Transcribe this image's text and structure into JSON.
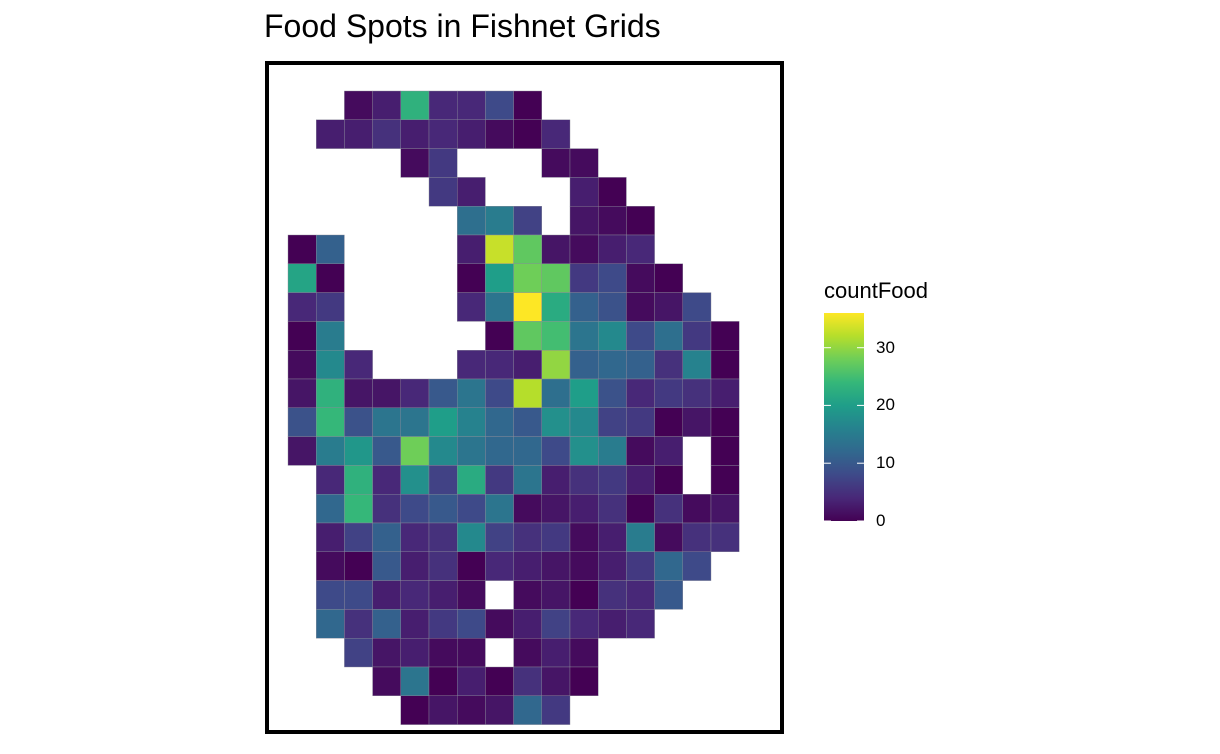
{
  "chart_data": {
    "type": "heatmap",
    "title": "Food Spots in Fishnet Grids",
    "legend": {
      "title": "countFood",
      "placement": "right",
      "ticks": [
        0,
        10,
        20,
        30
      ],
      "max": 36
    },
    "colormap": [
      "#440154",
      "#482878",
      "#3e4a89",
      "#31688e",
      "#26828e",
      "#1f9e89",
      "#35b779",
      "#6ece58",
      "#b5de2b",
      "#fde725"
    ],
    "rows": [
      [
        "",
        "",
        "1",
        "3",
        "23",
        "4",
        "4",
        "8",
        "0",
        "",
        "",
        "",
        "",
        "",
        "",
        ""
      ],
      [
        "",
        "3",
        "3",
        "5",
        "3",
        "4",
        "3",
        "1",
        "0",
        "4",
        "",
        "",
        "",
        "",
        "",
        ""
      ],
      [
        "",
        "",
        "",
        "",
        "1",
        "6",
        "",
        "",
        "",
        "1",
        "1",
        "",
        "",
        "",
        "",
        ""
      ],
      [
        "",
        "",
        "",
        "",
        "",
        "6",
        "3",
        "",
        "",
        "",
        "3",
        "0",
        "",
        "",
        "",
        ""
      ],
      [
        "",
        "",
        "",
        "",
        "",
        "",
        "13",
        "15",
        "7",
        "",
        "2",
        "1",
        "0",
        "",
        "",
        ""
      ],
      [
        "0",
        "11",
        "",
        "",
        "",
        "",
        "3",
        "33",
        "27",
        "2",
        "1",
        "3",
        "4",
        "",
        "",
        ""
      ],
      [
        "21",
        "0",
        "",
        "",
        "",
        "",
        "0",
        "20",
        "28",
        "27",
        "6",
        "8",
        "1",
        "0",
        "",
        ""
      ],
      [
        "4",
        "6",
        "",
        "",
        "",
        "",
        "4",
        "14",
        "36",
        "22",
        "11",
        "9",
        "1",
        "2",
        "8",
        ""
      ],
      [
        "0",
        "15",
        "",
        "",
        "",
        "",
        "",
        "0",
        "27",
        "25",
        "14",
        "17",
        "8",
        "13",
        "6",
        "0"
      ],
      [
        "1",
        "17",
        "4",
        "",
        "",
        "",
        "4",
        "4",
        "3",
        "30",
        "11",
        "12",
        "11",
        "5",
        "16",
        "0"
      ],
      [
        "2",
        "23",
        "2",
        "2",
        "4",
        "10",
        "14",
        "8",
        "32",
        "13",
        "20",
        "9",
        "4",
        "6",
        "5",
        "3"
      ],
      [
        "9",
        "24",
        "9",
        "14",
        "14",
        "20",
        "16",
        "12",
        "10",
        "18",
        "17",
        "7",
        "6",
        "0",
        "2",
        "0"
      ],
      [
        "2",
        "15",
        "19",
        "10",
        "28",
        "17",
        "14",
        "12",
        "12",
        "8",
        "18",
        "15",
        "1",
        "3",
        "",
        "0"
      ],
      [
        "",
        "4",
        "23",
        "4",
        "18",
        "7",
        "22",
        "6",
        "14",
        "3",
        "5",
        "6",
        "3",
        "0",
        "",
        "0"
      ],
      [
        "",
        "12",
        "24",
        "5",
        "8",
        "10",
        "8",
        "14",
        "1",
        "2",
        "3",
        "5",
        "0",
        "5",
        "1",
        "2"
      ],
      [
        "",
        "3",
        "7",
        "11",
        "4",
        "5",
        "17",
        "7",
        "5",
        "6",
        "1",
        "3",
        "15",
        "1",
        "5",
        "5"
      ],
      [
        "",
        "1",
        "0",
        "10",
        "3",
        "5",
        "0",
        "4",
        "3",
        "2",
        "1",
        "3",
        "6",
        "12",
        "8",
        ""
      ],
      [
        "",
        "8",
        "8",
        "3",
        "4",
        "3",
        "1",
        "",
        "1",
        "2",
        "0",
        "5",
        "4",
        "10",
        "",
        ""
      ],
      [
        "",
        "12",
        "5",
        "11",
        "3",
        "6",
        "8",
        "1",
        "3",
        "7",
        "4",
        "3",
        "4",
        "",
        "",
        ""
      ],
      [
        "",
        "",
        "7",
        "2",
        "3",
        "1",
        "1",
        "",
        "1",
        "3",
        "1",
        "",
        "",
        "",
        "",
        ""
      ],
      [
        "",
        "",
        "",
        "1",
        "14",
        "0",
        "3",
        "0",
        "5",
        "2",
        "0",
        "",
        "",
        "",
        "",
        ""
      ],
      [
        "",
        "",
        "",
        "",
        "0",
        "2",
        "1",
        "2",
        "12",
        "6",
        "",
        "",
        "",
        "",
        "",
        ""
      ]
    ]
  }
}
